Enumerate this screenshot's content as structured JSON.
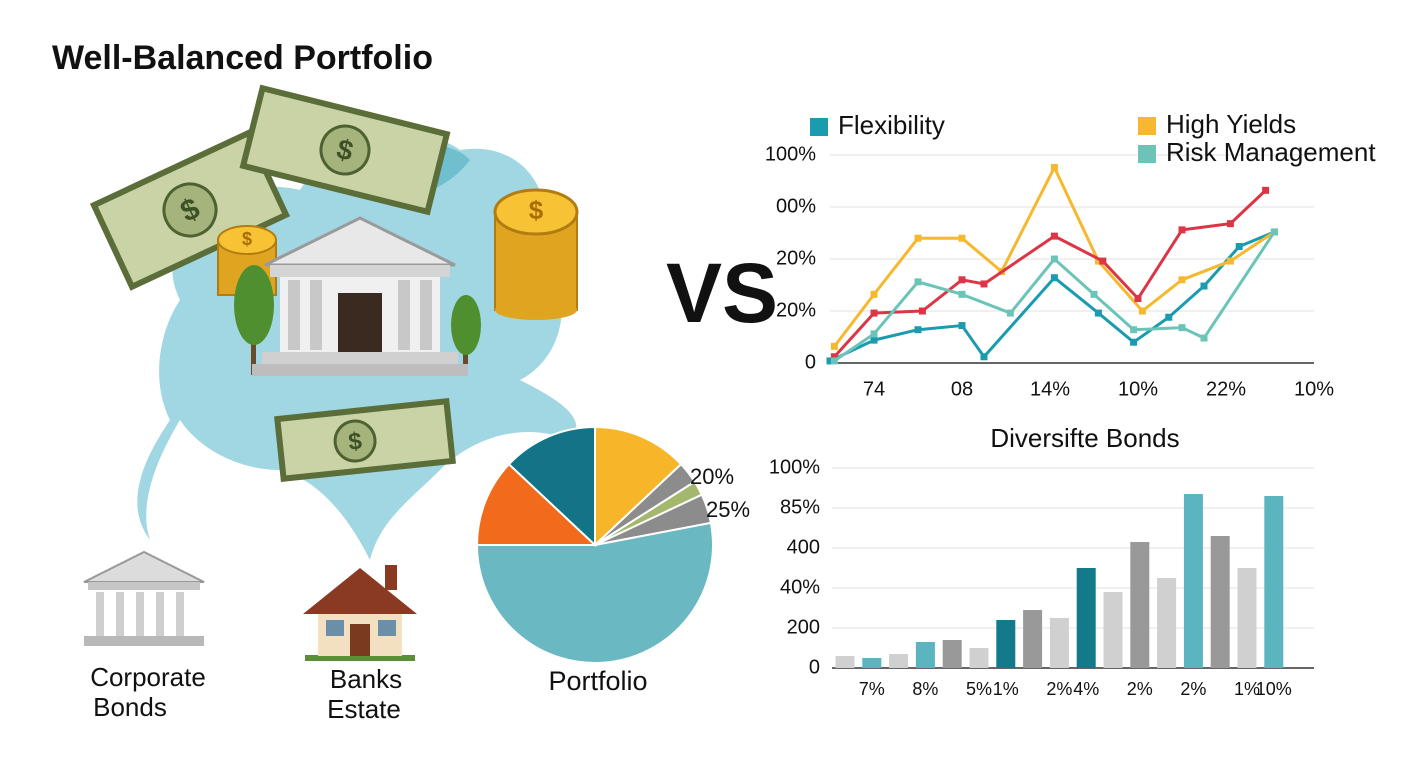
{
  "title": "Well-Balanced Portfolio",
  "vs": "VS",
  "icons": [
    {
      "label": [
        "Corporate",
        "Bonds"
      ]
    },
    {
      "label": [
        "Banks",
        "Estate"
      ]
    }
  ],
  "chart_data": [
    {
      "type": "line",
      "xlim": [
        0,
        11
      ],
      "xticks": [
        {
          "value": 1,
          "label": "74"
        },
        {
          "value": 3,
          "label": "08"
        },
        {
          "value": 5,
          "label": "14%"
        },
        {
          "value": 7,
          "label": "10%"
        },
        {
          "value": 9,
          "label": "22%"
        },
        {
          "value": 11,
          "label": "10%"
        }
      ],
      "ylim": [
        0,
        100
      ],
      "yticks": [
        0,
        {
          "value": 25,
          "label": "20%"
        },
        {
          "value": 50,
          "label": "20%"
        },
        {
          "value": 75,
          "label": "00%"
        },
        {
          "value": 100,
          "label": "100%"
        }
      ],
      "grid": true,
      "series": [
        {
          "name": "Flexibility",
          "color": "#1a9bb0",
          "x": [
            0.0,
            1.0,
            2.0,
            3.0,
            3.5,
            5.1,
            6.1,
            6.9,
            7.7,
            8.5,
            9.3,
            10.1
          ],
          "values": [
            1,
            11,
            16,
            18,
            3,
            41,
            24,
            10,
            22,
            37,
            56,
            63
          ]
        },
        {
          "name": "High Yields",
          "color": "#f5b82e",
          "x": [
            0.1,
            1.0,
            2.0,
            3.0,
            3.9,
            5.1,
            6.1,
            7.1,
            8.0,
            9.1,
            10.1
          ],
          "values": [
            8,
            33,
            60,
            60,
            44,
            94,
            49,
            25,
            40,
            49,
            63
          ]
        },
        {
          "color": "#dc3545",
          "x": [
            0.1,
            1.0,
            2.1,
            3.0,
            3.5,
            5.1,
            6.2,
            7.0,
            8.0,
            9.1,
            9.9
          ],
          "values": [
            3,
            24,
            25,
            40,
            38,
            61,
            49,
            31,
            64,
            67,
            83
          ]
        },
        {
          "name": "Risk Management",
          "color": "#6cc4b8",
          "x": [
            0.1,
            1.0,
            2.0,
            3.0,
            4.1,
            5.1,
            6.0,
            6.9,
            8.0,
            8.5,
            10.1
          ],
          "values": [
            1,
            14,
            39,
            33,
            24,
            50,
            33,
            16,
            17,
            12,
            63
          ]
        }
      ]
    },
    {
      "type": "bar",
      "title": "Diversifte Bonds",
      "categories": [
        null,
        "7%",
        null,
        "8%",
        null,
        "5%",
        "1%",
        null,
        "2%",
        "4%",
        null,
        "2%",
        null,
        "2%",
        null,
        "1%",
        "10%"
      ],
      "values": [
        6,
        5,
        7,
        13,
        14,
        10,
        24,
        29,
        25,
        50,
        38,
        63,
        45,
        87,
        66,
        50,
        86
      ],
      "colors": [
        "#d0d0d0",
        "#5bb5c0",
        "#d0d0d0",
        "#5bb5c0",
        "#999999",
        "#d0d0d0",
        "#137a8c",
        "#999999",
        "#d0d0d0",
        "#137a8c",
        "#d0d0d0",
        "#999999",
        "#d0d0d0",
        "#5bb5c0",
        "#999999",
        "#d0d0d0",
        "#5bb5c0"
      ],
      "ylim": [
        0,
        100
      ],
      "yticks": [
        0,
        {
          "value": 20,
          "label": "200"
        },
        {
          "value": 40,
          "label": "40%"
        },
        {
          "value": 60,
          "label": "400"
        },
        {
          "value": 80,
          "label": "85%"
        },
        {
          "value": 100,
          "label": "100%"
        }
      ],
      "grid": true
    },
    {
      "type": "pie",
      "title": "Portfolio",
      "values": [
        13,
        3,
        2,
        4,
        53,
        12,
        13
      ],
      "colors": [
        "#f7b52a",
        "#8c8c8c",
        "#a3b86c",
        "#8c8c8c",
        "#6ab8c2",
        "#f26b1d",
        "#137487"
      ],
      "annotations": [
        "20%",
        "25%"
      ]
    }
  ]
}
